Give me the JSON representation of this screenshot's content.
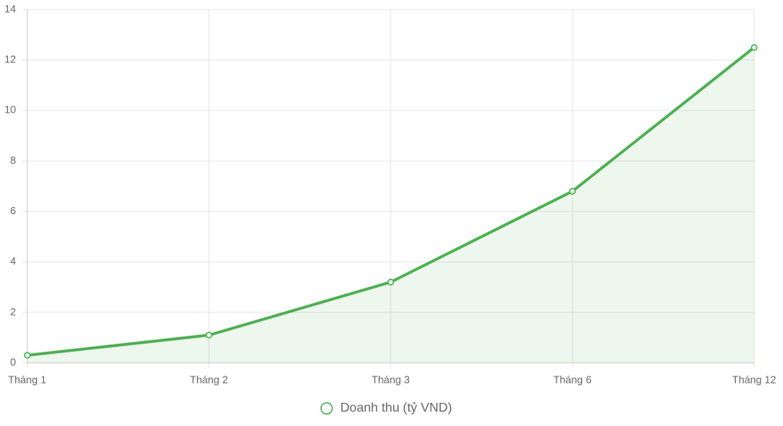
{
  "chart_data": {
    "type": "line",
    "categories": [
      "Tháng 1",
      "Tháng 2",
      "Tháng 3",
      "Tháng 6",
      "Tháng 12"
    ],
    "series": [
      {
        "name": "Doanh thu (tỷ VND)",
        "color": "#4caf50",
        "values": [
          0.3,
          1.1,
          3.2,
          6.8,
          12.5
        ]
      }
    ],
    "ylim": [
      0,
      14
    ],
    "yticks": [
      0,
      2,
      4,
      6,
      8,
      10,
      12,
      14
    ],
    "grid": true,
    "fill": true,
    "legend": "bottom"
  }
}
